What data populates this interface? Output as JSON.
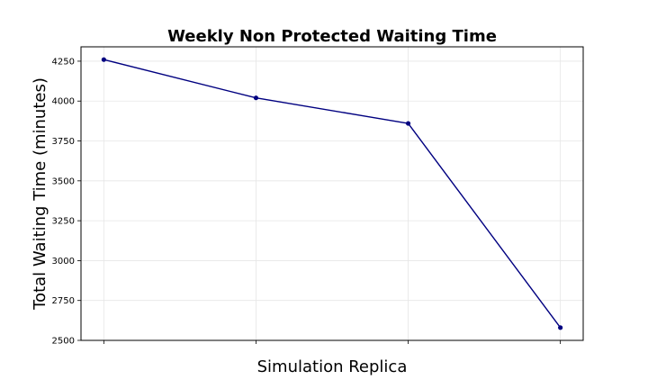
{
  "chart_data": {
    "type": "line",
    "title": "Weekly Non Protected Waiting Time",
    "xlabel": "Simulation Replica",
    "ylabel": "Total Waiting Time (minutes)",
    "x": [
      1,
      2,
      3,
      4
    ],
    "x_tick_labels_shown": false,
    "series": [
      {
        "values": [
          4260,
          4020,
          3860,
          2580
        ],
        "color": "#000080",
        "marker": "circle"
      }
    ],
    "xlim": [
      0.85,
      4.15
    ],
    "ylim": [
      2500,
      4340
    ],
    "yticks": [
      2500,
      2750,
      3000,
      3250,
      3500,
      3750,
      4000,
      4250
    ],
    "grid": true,
    "grid_color": "#e6e6e6",
    "legend": "none"
  }
}
